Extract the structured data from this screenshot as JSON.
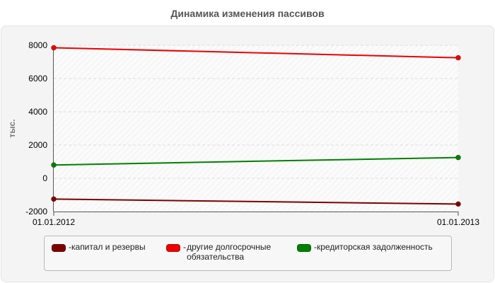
{
  "chart_data": {
    "type": "line",
    "title": "Динамика изменения пассивов",
    "ylabel": "тыс.",
    "xlabel": "",
    "categories": [
      "01.01.2012",
      "01.01.2013"
    ],
    "ylim": [
      -2000,
      8000
    ],
    "yticks": [
      -2000,
      0,
      2000,
      4000,
      6000,
      8000
    ],
    "grid": "horizontal-dashed",
    "legend_position": "bottom",
    "series": [
      {
        "name": "капитал и резервы",
        "color": "#800000",
        "values": [
          -1250,
          -1550
        ]
      },
      {
        "name": "другие долгосрочные обязательства",
        "color": "#ee0000",
        "values": [
          7850,
          7250
        ]
      },
      {
        "name": "кредиторская задолженность",
        "color": "#008000",
        "values": [
          800,
          1250
        ]
      }
    ]
  }
}
